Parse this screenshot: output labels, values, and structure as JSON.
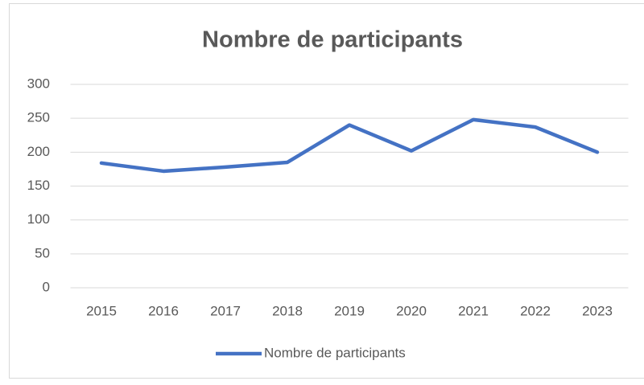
{
  "chart_data": {
    "type": "line",
    "title": "Nombre de participants",
    "categories": [
      "2015",
      "2016",
      "2017",
      "2018",
      "2019",
      "2020",
      "2021",
      "2022",
      "2023"
    ],
    "series": [
      {
        "name": "Nombre de participants",
        "color": "#4472c4",
        "values": [
          184,
          172,
          178,
          185,
          240,
          202,
          248,
          237,
          200
        ]
      }
    ],
    "ylim": [
      0,
      300
    ],
    "yticks": [
      0,
      50,
      100,
      150,
      200,
      250,
      300
    ],
    "grid": true,
    "legend": "bottom"
  }
}
